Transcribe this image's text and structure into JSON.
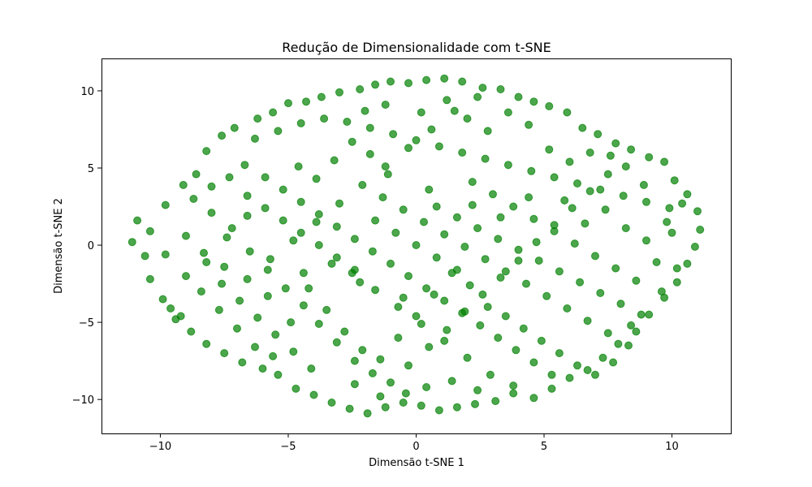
{
  "chart_data": {
    "type": "scatter",
    "title": "Redução de Dimensionalidade com t-SNE",
    "xlabel": "Dimensão t-SNE 1",
    "ylabel": "Dimensão t-SNE 2",
    "xlim": [
      -12.3,
      12.3
    ],
    "ylim": [
      -12.2,
      12.1
    ],
    "xticks": [
      -10,
      -5,
      0,
      5,
      10
    ],
    "yticks": [
      -10,
      -5,
      0,
      5,
      10
    ],
    "xtick_labels": [
      "−10",
      "−5",
      "0",
      "5",
      "10"
    ],
    "ytick_labels": [
      "−10",
      "−5",
      "0",
      "5",
      "10"
    ],
    "grid": false,
    "marker_color": "#008000",
    "marker_alpha": 0.7,
    "series": [
      {
        "points": [
          [
            -10.9,
            1.6
          ],
          [
            -11.1,
            0.2
          ],
          [
            -10.6,
            -0.7
          ],
          [
            -10.4,
            -2.2
          ],
          [
            -9.9,
            -3.5
          ],
          [
            -9.6,
            -4.1
          ],
          [
            -9.2,
            -4.6
          ],
          [
            -9.8,
            2.6
          ],
          [
            -9.1,
            3.9
          ],
          [
            -8.6,
            4.6
          ],
          [
            -8.2,
            6.1
          ],
          [
            -7.6,
            7.1
          ],
          [
            -7.1,
            7.6
          ],
          [
            -6.2,
            8.2
          ],
          [
            -5.6,
            8.6
          ],
          [
            -5.0,
            9.2
          ],
          [
            -4.3,
            9.3
          ],
          [
            -3.7,
            9.6
          ],
          [
            -3.0,
            9.9
          ],
          [
            -2.2,
            10.1
          ],
          [
            -1.6,
            10.4
          ],
          [
            -1.0,
            10.6
          ],
          [
            -0.3,
            10.5
          ],
          [
            0.4,
            10.7
          ],
          [
            1.1,
            10.8
          ],
          [
            1.8,
            10.6
          ],
          [
            2.6,
            10.2
          ],
          [
            3.3,
            10.1
          ],
          [
            4.0,
            9.6
          ],
          [
            4.6,
            9.3
          ],
          [
            5.2,
            9.0
          ],
          [
            5.9,
            8.6
          ],
          [
            6.5,
            7.6
          ],
          [
            7.1,
            7.2
          ],
          [
            7.8,
            6.6
          ],
          [
            8.4,
            6.2
          ],
          [
            9.1,
            5.7
          ],
          [
            9.7,
            5.4
          ],
          [
            10.1,
            4.2
          ],
          [
            10.6,
            3.3
          ],
          [
            11.0,
            2.2
          ],
          [
            11.1,
            1.0
          ],
          [
            10.9,
            -0.1
          ],
          [
            10.6,
            -1.2
          ],
          [
            10.2,
            -2.4
          ],
          [
            9.7,
            -3.4
          ],
          [
            9.1,
            -4.5
          ],
          [
            8.6,
            -5.6
          ],
          [
            7.9,
            -6.4
          ],
          [
            7.3,
            -7.3
          ],
          [
            6.7,
            -8.1
          ],
          [
            6.0,
            -8.6
          ],
          [
            5.3,
            -9.3
          ],
          [
            4.6,
            -9.9
          ],
          [
            3.8,
            -9.6
          ],
          [
            3.1,
            -10.1
          ],
          [
            2.3,
            -10.3
          ],
          [
            1.6,
            -10.5
          ],
          [
            0.9,
            -10.7
          ],
          [
            0.2,
            -10.4
          ],
          [
            -0.5,
            -10.2
          ],
          [
            -1.2,
            -10.5
          ],
          [
            -1.9,
            -10.9
          ],
          [
            -2.6,
            -10.6
          ],
          [
            -3.3,
            -10.2
          ],
          [
            -4.0,
            -9.7
          ],
          [
            -4.7,
            -9.3
          ],
          [
            -5.4,
            -8.4
          ],
          [
            -6.0,
            -8.0
          ],
          [
            -6.8,
            -7.6
          ],
          [
            -7.5,
            -7.0
          ],
          [
            -8.2,
            -6.4
          ],
          [
            -8.8,
            -5.6
          ],
          [
            -9.4,
            -4.8
          ],
          [
            -8.0,
            2.1
          ],
          [
            -7.2,
            1.1
          ],
          [
            -6.5,
            -0.4
          ],
          [
            -5.8,
            -1.6
          ],
          [
            -5.1,
            -2.8
          ],
          [
            -4.4,
            -3.9
          ],
          [
            -3.8,
            -5.1
          ],
          [
            -3.1,
            -6.3
          ],
          [
            -2.4,
            -7.5
          ],
          [
            -1.7,
            -8.3
          ],
          [
            -1.0,
            -8.9
          ],
          [
            -0.3,
            -7.8
          ],
          [
            0.5,
            -6.6
          ],
          [
            1.2,
            -5.5
          ],
          [
            1.9,
            -4.3
          ],
          [
            2.6,
            -3.2
          ],
          [
            3.3,
            -2.1
          ],
          [
            4.0,
            -1.0
          ],
          [
            4.7,
            0.2
          ],
          [
            5.4,
            1.3
          ],
          [
            6.1,
            2.4
          ],
          [
            6.8,
            3.5
          ],
          [
            7.5,
            4.6
          ],
          [
            8.2,
            5.1
          ],
          [
            8.9,
            3.9
          ],
          [
            -7.6,
            -2.5
          ],
          [
            -6.9,
            -3.6
          ],
          [
            -6.2,
            -4.7
          ],
          [
            -5.5,
            -5.8
          ],
          [
            -4.8,
            -6.9
          ],
          [
            -4.1,
            -8.0
          ],
          [
            -6.7,
            5.2
          ],
          [
            -5.9,
            4.4
          ],
          [
            -5.2,
            3.6
          ],
          [
            -4.5,
            2.8
          ],
          [
            -3.8,
            2.0
          ],
          [
            -3.1,
            1.2
          ],
          [
            -2.4,
            0.4
          ],
          [
            -1.7,
            -0.4
          ],
          [
            -1.0,
            -1.2
          ],
          [
            -0.3,
            -2.0
          ],
          [
            0.4,
            -2.8
          ],
          [
            1.1,
            -3.6
          ],
          [
            1.8,
            -4.4
          ],
          [
            2.5,
            -5.2
          ],
          [
            3.2,
            -6.0
          ],
          [
            3.9,
            -6.8
          ],
          [
            4.6,
            -7.6
          ],
          [
            5.3,
            -8.4
          ],
          [
            -6.3,
            6.9
          ],
          [
            -5.4,
            7.4
          ],
          [
            -4.5,
            7.9
          ],
          [
            -3.6,
            8.2
          ],
          [
            -2.7,
            8.0
          ],
          [
            -1.8,
            7.6
          ],
          [
            -0.9,
            7.2
          ],
          [
            0.0,
            6.8
          ],
          [
            0.9,
            6.4
          ],
          [
            1.8,
            6.0
          ],
          [
            2.7,
            5.6
          ],
          [
            3.6,
            5.2
          ],
          [
            4.5,
            4.8
          ],
          [
            5.4,
            4.4
          ],
          [
            6.3,
            4.0
          ],
          [
            7.2,
            3.6
          ],
          [
            8.1,
            3.2
          ],
          [
            9.0,
            2.8
          ],
          [
            9.9,
            2.4
          ],
          [
            -9.0,
            0.6
          ],
          [
            -8.3,
            -0.5
          ],
          [
            -7.5,
            -1.4
          ],
          [
            -6.6,
            -2.2
          ],
          [
            -5.7,
            -0.9
          ],
          [
            -4.8,
            0.3
          ],
          [
            -3.9,
            1.5
          ],
          [
            -3.0,
            2.7
          ],
          [
            -2.1,
            3.9
          ],
          [
            -1.2,
            5.1
          ],
          [
            -0.3,
            6.3
          ],
          [
            0.6,
            7.5
          ],
          [
            1.5,
            8.7
          ],
          [
            2.4,
            9.6
          ],
          [
            -2.5,
            -1.8
          ],
          [
            -1.6,
            -2.9
          ],
          [
            -0.7,
            -4.0
          ],
          [
            0.2,
            -5.1
          ],
          [
            1.1,
            -6.2
          ],
          [
            2.0,
            -7.3
          ],
          [
            2.9,
            -8.4
          ],
          [
            3.8,
            -9.1
          ],
          [
            0.8,
            2.5
          ],
          [
            1.6,
            1.8
          ],
          [
            2.4,
            1.1
          ],
          [
            3.2,
            0.4
          ],
          [
            4.0,
            -0.3
          ],
          [
            4.8,
            -1.0
          ],
          [
            5.6,
            -1.7
          ],
          [
            6.4,
            -2.4
          ],
          [
            7.2,
            -3.1
          ],
          [
            8.0,
            -3.8
          ],
          [
            8.8,
            -4.5
          ],
          [
            9.6,
            -3.0
          ],
          [
            10.2,
            -1.5
          ],
          [
            -1.3,
            3.1
          ],
          [
            -0.5,
            2.3
          ],
          [
            0.3,
            1.5
          ],
          [
            1.1,
            0.7
          ],
          [
            1.9,
            -0.1
          ],
          [
            2.7,
            -0.9
          ],
          [
            3.5,
            -1.7
          ],
          [
            4.3,
            -2.5
          ],
          [
            5.1,
            -3.3
          ],
          [
            5.9,
            -4.1
          ],
          [
            6.7,
            -4.9
          ],
          [
            7.5,
            -5.7
          ],
          [
            8.3,
            -6.5
          ],
          [
            2.2,
            4.1
          ],
          [
            3.0,
            3.3
          ],
          [
            3.8,
            2.5
          ],
          [
            4.6,
            1.7
          ],
          [
            5.4,
            0.9
          ],
          [
            6.2,
            0.1
          ],
          [
            7.0,
            -0.7
          ],
          [
            7.8,
            -1.5
          ],
          [
            8.6,
            -2.3
          ],
          [
            9.4,
            -1.1
          ],
          [
            10.0,
            0.8
          ],
          [
            5.2,
            6.2
          ],
          [
            6.0,
            5.4
          ],
          [
            6.8,
            6.0
          ],
          [
            7.6,
            5.8
          ],
          [
            4.4,
            7.8
          ],
          [
            3.6,
            8.6
          ],
          [
            2.8,
            7.4
          ],
          [
            -4.6,
            5.1
          ],
          [
            -3.9,
            4.3
          ],
          [
            -3.2,
            5.5
          ],
          [
            -2.5,
            6.7
          ],
          [
            -1.8,
            5.9
          ],
          [
            -1.1,
            4.6
          ],
          [
            -8.7,
            3.0
          ],
          [
            -8.0,
            3.8
          ],
          [
            -7.3,
            4.4
          ],
          [
            -6.6,
            3.2
          ],
          [
            -5.9,
            2.4
          ],
          [
            -5.2,
            1.6
          ],
          [
            -4.5,
            0.8
          ],
          [
            -3.8,
            0.0
          ],
          [
            -3.1,
            -0.8
          ],
          [
            -2.4,
            -1.6
          ],
          [
            -8.4,
            -3.0
          ],
          [
            -7.7,
            -4.2
          ],
          [
            -7.0,
            -5.4
          ],
          [
            -6.3,
            -6.6
          ],
          [
            -5.6,
            -7.2
          ],
          [
            -4.9,
            -5.0
          ],
          [
            -4.2,
            -2.8
          ],
          [
            -3.5,
            -4.2
          ],
          [
            -2.8,
            -5.6
          ],
          [
            -2.1,
            -6.8
          ],
          [
            -1.4,
            -7.4
          ],
          [
            -0.7,
            -6.0
          ],
          [
            0.0,
            -4.6
          ],
          [
            0.7,
            -3.2
          ],
          [
            1.4,
            -1.8
          ],
          [
            2.1,
            -2.6
          ],
          [
            2.8,
            -4.0
          ],
          [
            3.5,
            -4.6
          ],
          [
            4.2,
            -5.4
          ],
          [
            4.9,
            -6.2
          ],
          [
            5.6,
            -7.0
          ],
          [
            6.3,
            -7.8
          ],
          [
            7.0,
            -8.4
          ],
          [
            7.7,
            -7.6
          ],
          [
            8.4,
            -5.2
          ],
          [
            0.0,
            0.0
          ],
          [
            -0.8,
            0.8
          ],
          [
            0.8,
            -0.8
          ],
          [
            -1.6,
            1.6
          ],
          [
            1.6,
            -1.6
          ],
          [
            0.5,
            3.6
          ],
          [
            -0.5,
            -3.4
          ],
          [
            2.2,
            2.6
          ],
          [
            -2.2,
            -2.4
          ],
          [
            3.3,
            1.8
          ],
          [
            -3.3,
            -1.2
          ],
          [
            4.4,
            3.1
          ],
          [
            -4.4,
            -1.8
          ],
          [
            5.8,
            2.9
          ],
          [
            -5.8,
            -3.3
          ],
          [
            6.6,
            1.4
          ],
          [
            -6.6,
            1.9
          ],
          [
            7.4,
            2.3
          ],
          [
            -7.4,
            0.5
          ],
          [
            8.2,
            1.1
          ],
          [
            -8.2,
            -1.1
          ],
          [
            9.0,
            0.3
          ],
          [
            -9.0,
            -2.0
          ],
          [
            9.8,
            1.5
          ],
          [
            -9.8,
            -0.6
          ],
          [
            10.4,
            2.7
          ],
          [
            -10.4,
            0.9
          ],
          [
            1.2,
            9.4
          ],
          [
            -1.2,
            9.1
          ],
          [
            0.2,
            8.6
          ],
          [
            2.0,
            8.2
          ],
          [
            -2.0,
            8.7
          ],
          [
            0.4,
            -9.2
          ],
          [
            -0.4,
            -9.6
          ],
          [
            1.4,
            -8.8
          ],
          [
            -1.4,
            -9.8
          ],
          [
            2.4,
            -9.4
          ],
          [
            -2.4,
            -9.0
          ]
        ]
      }
    ]
  }
}
